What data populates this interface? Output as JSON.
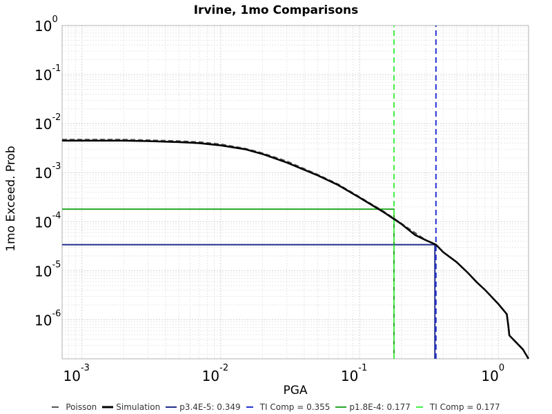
{
  "chart_data": {
    "type": "line",
    "title": "Irvine, 1mo Comparisons",
    "xlabel": "PGA",
    "ylabel": "1mo Exceed. Prob",
    "x_scale": "log",
    "y_scale": "log",
    "xlim": [
      0.00072,
      1.65
    ],
    "ylim": [
      1.6e-07,
      1.0
    ],
    "grid": true,
    "legend_position": "bottom",
    "x_ticks": [
      {
        "value": 0.001,
        "base": "10",
        "exp": "-3"
      },
      {
        "value": 0.01,
        "base": "10",
        "exp": "-2"
      },
      {
        "value": 0.1,
        "base": "10",
        "exp": "-1"
      },
      {
        "value": 1,
        "base": "10",
        "exp": "0"
      }
    ],
    "y_ticks": [
      {
        "value": 1,
        "base": "10",
        "exp": "0"
      },
      {
        "value": 0.1,
        "base": "10",
        "exp": "-1"
      },
      {
        "value": 0.01,
        "base": "10",
        "exp": "-2"
      },
      {
        "value": 0.001,
        "base": "10",
        "exp": "-3"
      },
      {
        "value": 0.0001,
        "base": "10",
        "exp": "-4"
      },
      {
        "value": 1e-05,
        "base": "10",
        "exp": "-5"
      },
      {
        "value": 1e-06,
        "base": "10",
        "exp": "-6"
      }
    ],
    "series": [
      {
        "name": "Poisson",
        "color": "#555555",
        "style": "dashed",
        "x": [
          0.00072,
          0.001,
          0.002,
          0.003,
          0.005,
          0.007,
          0.01,
          0.015,
          0.02,
          0.03,
          0.05,
          0.07,
          0.1,
          0.15,
          0.2,
          0.3
        ],
        "y": [
          0.0047,
          0.0047,
          0.0047,
          0.0046,
          0.0044,
          0.0042,
          0.0038,
          0.0031,
          0.0025,
          0.0017,
          0.00091,
          0.00058,
          0.00032,
          0.00016,
          9.2e-05,
          4.2e-05
        ]
      },
      {
        "name": "Simulation",
        "color": "#000000",
        "style": "solid",
        "x": [
          0.00072,
          0.001,
          0.002,
          0.003,
          0.005,
          0.007,
          0.01,
          0.015,
          0.02,
          0.03,
          0.05,
          0.07,
          0.1,
          0.15,
          0.2,
          0.25,
          0.3,
          0.355,
          0.4,
          0.5,
          0.6,
          0.7,
          0.8,
          1.0,
          1.15,
          1.18,
          1.2,
          1.3,
          1.5,
          1.65
        ],
        "y": [
          0.0045,
          0.0045,
          0.0045,
          0.0044,
          0.0042,
          0.004,
          0.0036,
          0.003,
          0.0024,
          0.0016,
          0.00088,
          0.00056,
          0.00031,
          0.000155,
          9e-05,
          5.4e-05,
          4.2e-05,
          3.4e-05,
          2.4e-05,
          1.5e-05,
          9.2e-06,
          5.8e-06,
          4.1e-06,
          2.1e-06,
          1.3e-06,
          7.5e-07,
          4.8e-07,
          3.8e-07,
          2.5e-07,
          1.6e-07
        ]
      },
      {
        "name": "p3.4E-5: 0.349",
        "color": "#1f2a8a",
        "style": "solid",
        "x": [
          0.00072,
          0.349,
          0.349
        ],
        "y": [
          3.4e-05,
          3.4e-05,
          1.6e-07
        ]
      },
      {
        "name": "TI Comp = 0.355",
        "color": "#2330d0",
        "style": "dashed",
        "x": [
          0.355,
          0.355
        ],
        "y": [
          1.6e-07,
          1.0
        ]
      },
      {
        "name": "p1.8E-4: 0.177",
        "color": "#22a822",
        "style": "solid",
        "x": [
          0.00072,
          0.177,
          0.177
        ],
        "y": [
          0.00018,
          0.00018,
          1.6e-07
        ]
      },
      {
        "name": "TI Comp = 0.177",
        "color": "#44ee44",
        "style": "dashed",
        "x": [
          0.177,
          0.177
        ],
        "y": [
          1.6e-07,
          1.0
        ]
      }
    ]
  }
}
